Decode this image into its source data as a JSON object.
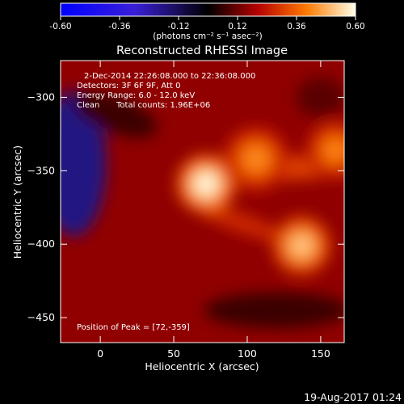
{
  "colorbar": {
    "ticks": [
      "-0.60",
      "-0.36",
      "-0.12",
      "0.12",
      "0.36",
      "0.60"
    ],
    "units_label": "(photons cm⁻² s⁻¹ asec⁻²)",
    "range": [
      -0.6,
      0.6
    ],
    "stops": [
      {
        "v": -0.6,
        "color": "#0000ff"
      },
      {
        "v": -0.3,
        "color": "#3a1fd8"
      },
      {
        "v": 0.0,
        "color": "#000000"
      },
      {
        "v": 0.2,
        "color": "#b40000"
      },
      {
        "v": 0.4,
        "color": "#ff7a00"
      },
      {
        "v": 0.6,
        "color": "#ffffe8"
      }
    ]
  },
  "annotation": {
    "time_range": "2-Dec-2014 22:26:08.000 to 22:36:08.000",
    "detectors": "Detectors: 3F 6F 9F, Att 0",
    "energy_range": "Energy Range: 6.0 - 12.0 keV",
    "clean_label": "Clean",
    "total_counts": "Total counts: 1.96E+06",
    "peak_position": "Position of Peak = [72,-359]"
  },
  "footer_timestamp": "19-Aug-2017 01:24",
  "chart_data": {
    "type": "heatmap",
    "title": "Reconstructed RHESSI Image",
    "xlabel": "Heliocentric X (arcsec)",
    "ylabel": "Heliocentric Y (arcsec)",
    "xlim": [
      -27,
      166
    ],
    "ylim": [
      -467,
      -275
    ],
    "x_ticks": [
      0,
      50,
      100,
      150
    ],
    "y_ticks": [
      -300,
      -350,
      -400,
      -450
    ],
    "background_level": 0.16,
    "sources": [
      {
        "x": 72,
        "y": -359,
        "peak": 0.6,
        "sigma": 10
      },
      {
        "x": 137,
        "y": -401,
        "peak": 0.52,
        "sigma": 10
      },
      {
        "x": 106,
        "y": -342,
        "peak": 0.43,
        "sigma": 11
      },
      {
        "x": 160,
        "y": -336,
        "peak": 0.42,
        "sigma": 10
      }
    ],
    "negative_region": {
      "x": -18,
      "y": -345,
      "level": -0.18
    },
    "peak_position": [
      72,
      -359
    ]
  }
}
